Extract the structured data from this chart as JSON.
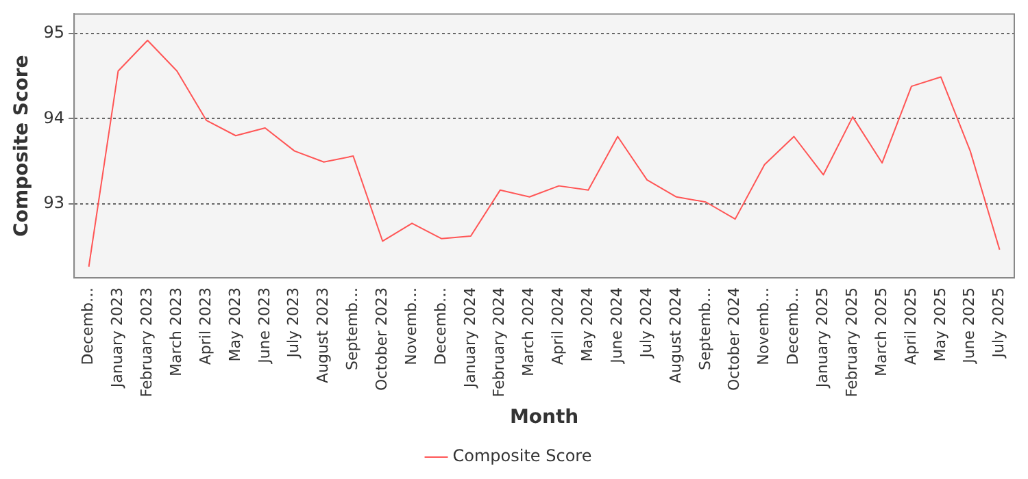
{
  "chart_data": {
    "type": "line",
    "xlabel": "Month",
    "ylabel": "Composite Score",
    "categories": [
      "Decemb…",
      "January 2023",
      "February 2023",
      "March 2023",
      "April 2023",
      "May 2023",
      "June 2023",
      "July 2023",
      "August 2023",
      "Septemb…",
      "October 2023",
      "Novemb…",
      "Decemb…",
      "January 2024",
      "February 2024",
      "March 2024",
      "April 2024",
      "May 2024",
      "June 2024",
      "July 2024",
      "August 2024",
      "Septemb…",
      "October 2024",
      "Novemb…",
      "Decemb…",
      "January 2025",
      "February 2025",
      "March 2025",
      "April 2025",
      "May 2025",
      "June 2025",
      "July 2025"
    ],
    "series": [
      {
        "name": "Composite Score",
        "color": "#ff5555",
        "values": [
          92.26,
          94.56,
          94.92,
          94.56,
          93.98,
          93.8,
          93.89,
          93.62,
          93.49,
          93.56,
          92.56,
          92.77,
          92.59,
          92.62,
          93.16,
          93.08,
          93.21,
          93.16,
          93.79,
          93.28,
          93.08,
          93.02,
          92.82,
          93.46,
          93.79,
          93.34,
          94.02,
          93.48,
          94.38,
          94.49,
          93.62,
          92.46
        ]
      }
    ],
    "ylim": [
      92.13,
      95.23
    ],
    "yticks": [
      93,
      94,
      95
    ],
    "grid": "y",
    "legend": "bottom",
    "marker": "none",
    "line_style": "solid"
  }
}
